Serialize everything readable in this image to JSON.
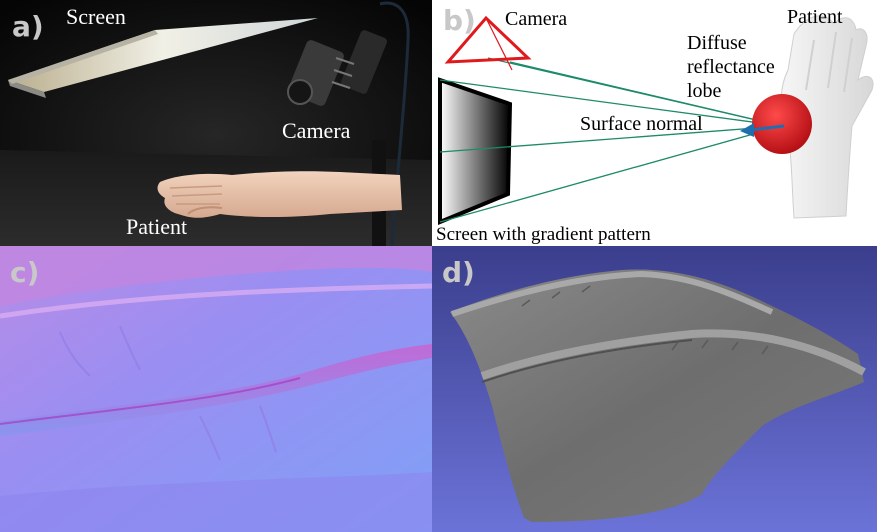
{
  "panels": {
    "a": {
      "letter": "a)",
      "labels": {
        "screen": "Screen",
        "camera": "Camera",
        "patient": "Patient"
      }
    },
    "b": {
      "letter": "b)",
      "labels": {
        "camera": "Camera",
        "patient": "Patient",
        "lobe_line1": "Diffuse",
        "lobe_line2": "reflectance",
        "lobe_line3": "lobe",
        "surface_normal": "Surface normal",
        "screen": "Screen with gradient pattern"
      },
      "colors": {
        "camera": "#e0191c",
        "rays": "#1d8a6a",
        "lobe": "#d4141c",
        "normal": "#1f6fb0"
      }
    },
    "c": {
      "letter": "c)"
    },
    "d": {
      "letter": "d)"
    }
  }
}
